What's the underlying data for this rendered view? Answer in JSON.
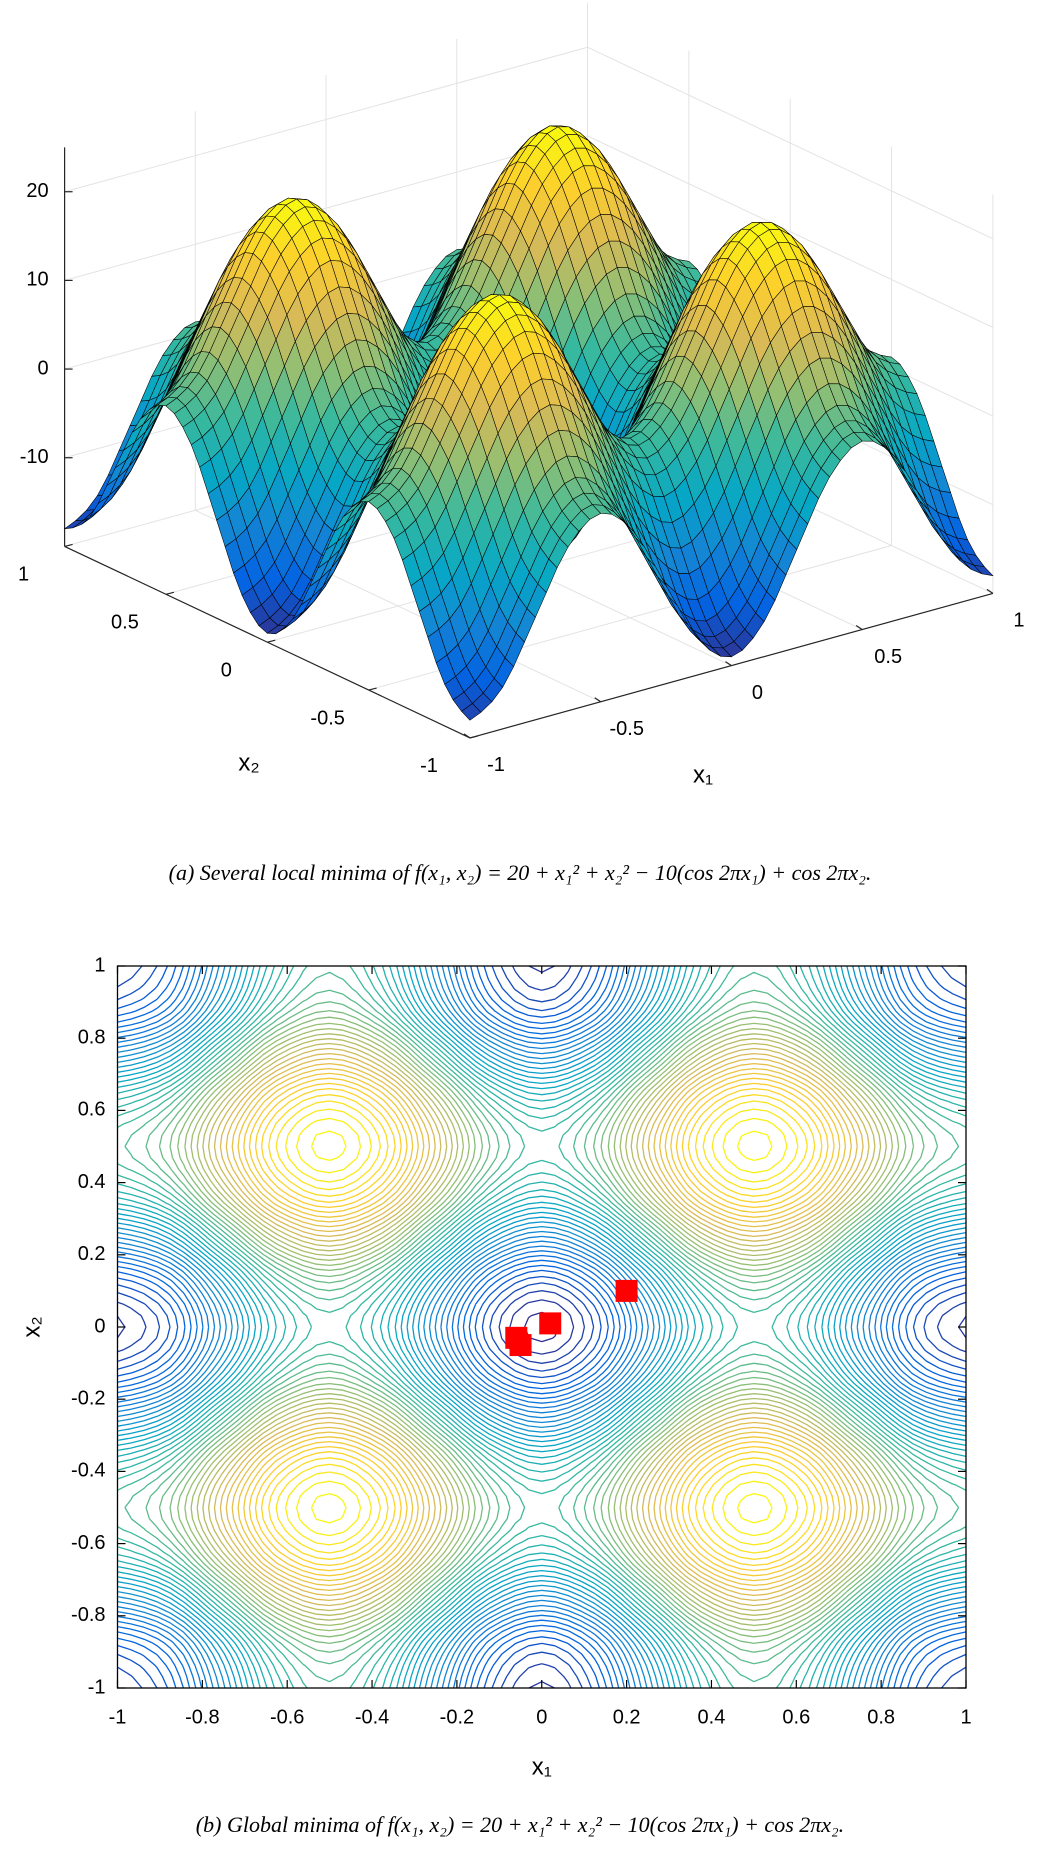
{
  "chart_data": [
    {
      "type": "surface",
      "caption": "(a) Several local minima of f(x₁, x₂) = 20 + x₁² + x₂² − 10(cos 2πx₁) + cos 2πx₂.",
      "xlabel": "x₁",
      "ylabel": "x₂",
      "x": [
        -1,
        -0.875,
        -0.75,
        -0.625,
        -0.5,
        -0.375,
        -0.25,
        -0.125,
        0,
        0.125,
        0.25,
        0.375,
        0.5,
        0.625,
        0.75,
        0.875,
        1
      ],
      "y": [
        -1,
        -0.875,
        -0.75,
        -0.625,
        -0.5,
        -0.375,
        -0.25,
        -0.125,
        0,
        0.125,
        0.25,
        0.375,
        0.5,
        0.625,
        0.75,
        0.875,
        1
      ],
      "z": [
        [
          -18,
          -15.31,
          -8.44,
          -1.54,
          1.25,
          -1.79,
          -8.94,
          -16.06,
          -19,
          -16.06,
          -8.94,
          -1.79,
          1.25,
          -1.54,
          -8.44,
          -15.31,
          -18
        ],
        [
          -15.31,
          -12.62,
          -5.75,
          1.15,
          3.94,
          0.9,
          -6.25,
          -13.37,
          -16.31,
          -13.37,
          -6.25,
          0.9,
          3.94,
          1.15,
          -5.75,
          -12.62,
          -15.31
        ],
        [
          -8.44,
          -5.75,
          1.12,
          8.02,
          10.81,
          7.77,
          0.62,
          -6.5,
          -9.44,
          -6.5,
          0.62,
          7.77,
          10.81,
          8.02,
          1.12,
          -5.75,
          -8.44
        ],
        [
          -1.54,
          1.15,
          8.02,
          14.92,
          17.71,
          14.67,
          7.52,
          0.4,
          -2.54,
          0.4,
          7.52,
          14.67,
          17.71,
          14.92,
          8.02,
          1.15,
          -1.54
        ],
        [
          1.25,
          3.94,
          10.81,
          17.71,
          20.5,
          17.46,
          10.31,
          3.19,
          0.25,
          3.19,
          10.31,
          17.46,
          20.5,
          17.71,
          10.81,
          3.94,
          1.25
        ],
        [
          -1.79,
          0.9,
          7.77,
          14.67,
          17.46,
          14.42,
          7.27,
          0.15,
          -2.79,
          0.15,
          7.27,
          14.42,
          17.46,
          14.67,
          7.77,
          0.9,
          -1.79
        ],
        [
          -8.94,
          -6.25,
          0.62,
          7.52,
          10.31,
          7.27,
          0.12,
          -7,
          -9.94,
          -7,
          0.12,
          7.27,
          10.31,
          7.52,
          0.62,
          -6.25,
          -8.94
        ],
        [
          -16.06,
          -13.37,
          -6.5,
          0.4,
          3.19,
          0.15,
          -7,
          -14.12,
          -17.06,
          -14.12,
          -7,
          0.15,
          3.19,
          0.4,
          -6.5,
          -13.37,
          -16.06
        ],
        [
          -19,
          -16.31,
          -9.44,
          -2.54,
          0.25,
          -2.79,
          -9.94,
          -17.06,
          -20,
          -17.06,
          -9.94,
          -2.79,
          0.25,
          -2.54,
          -9.44,
          -16.31,
          -19
        ],
        [
          -16.06,
          -13.37,
          -6.5,
          0.4,
          3.19,
          0.15,
          -7,
          -14.12,
          -17.06,
          -14.12,
          -7,
          0.15,
          3.19,
          0.4,
          -6.5,
          -13.37,
          -16.06
        ],
        [
          -8.94,
          -6.25,
          0.62,
          7.52,
          10.31,
          7.27,
          0.12,
          -7,
          -9.94,
          -7,
          0.12,
          7.27,
          10.31,
          7.52,
          0.62,
          -6.25,
          -8.94
        ],
        [
          -1.79,
          0.9,
          7.77,
          14.67,
          17.46,
          14.42,
          7.27,
          0.15,
          -2.79,
          0.15,
          7.27,
          14.42,
          17.46,
          14.67,
          7.77,
          0.9,
          -1.79
        ],
        [
          1.25,
          3.94,
          10.81,
          17.71,
          20.5,
          17.46,
          10.31,
          3.19,
          0.25,
          3.19,
          10.31,
          17.46,
          20.5,
          17.71,
          10.81,
          3.94,
          1.25
        ],
        [
          -1.54,
          1.15,
          8.02,
          14.92,
          17.71,
          14.67,
          7.52,
          0.4,
          -2.54,
          0.4,
          7.52,
          14.67,
          17.71,
          14.92,
          8.02,
          1.15,
          -1.54
        ],
        [
          -8.44,
          -5.75,
          1.12,
          8.02,
          10.81,
          7.77,
          0.62,
          -6.5,
          -9.44,
          -6.5,
          0.62,
          7.77,
          10.81,
          8.02,
          1.12,
          -5.75,
          -8.44
        ],
        [
          -15.31,
          -12.62,
          -5.75,
          1.15,
          3.94,
          0.9,
          -6.25,
          -13.37,
          -16.31,
          -13.37,
          -6.25,
          0.9,
          3.94,
          1.15,
          -5.75,
          -12.62,
          -15.31
        ],
        [
          -18,
          -15.31,
          -8.44,
          -1.54,
          1.25,
          -1.79,
          -8.94,
          -16.06,
          -19,
          -16.06,
          -8.94,
          -1.79,
          1.25,
          -1.54,
          -8.44,
          -15.31,
          -18
        ]
      ],
      "xlim": [
        -1,
        1
      ],
      "ylim": [
        -1,
        1
      ],
      "zlim": [
        -20,
        25
      ],
      "xticks": [
        -1,
        -0.5,
        0,
        0.5,
        1
      ],
      "yticks": [
        -1,
        -0.5,
        0,
        0.5,
        1
      ],
      "zticks": [
        -10,
        0,
        10,
        20
      ],
      "grid": true,
      "colormap": "parula",
      "mesh_color": "#000000"
    },
    {
      "type": "contour",
      "caption": "(b) Global minima of f(x₁, x₂) = 20 + x₁² + x₂² − 10(cos 2πx₁) + cos 2πx₂.",
      "xlabel": "x₁",
      "ylabel": "x₂",
      "x": [
        -0.06,
        -0.05,
        0.02,
        0.2
      ],
      "y": [
        -0.03,
        -0.05,
        0.01,
        0.1
      ],
      "color": "#ff0000",
      "xlim": [
        -1,
        1
      ],
      "ylim": [
        -1,
        1
      ],
      "xticks": [
        -1,
        -0.8,
        -0.6,
        -0.4,
        -0.2,
        0,
        0.2,
        0.4,
        0.6,
        0.8,
        1
      ],
      "yticks": [
        -1,
        -0.8,
        -0.6,
        -0.4,
        -0.2,
        0,
        0.2,
        0.4,
        0.6,
        0.8,
        1
      ],
      "levels": 50,
      "colormap": "parula"
    }
  ]
}
